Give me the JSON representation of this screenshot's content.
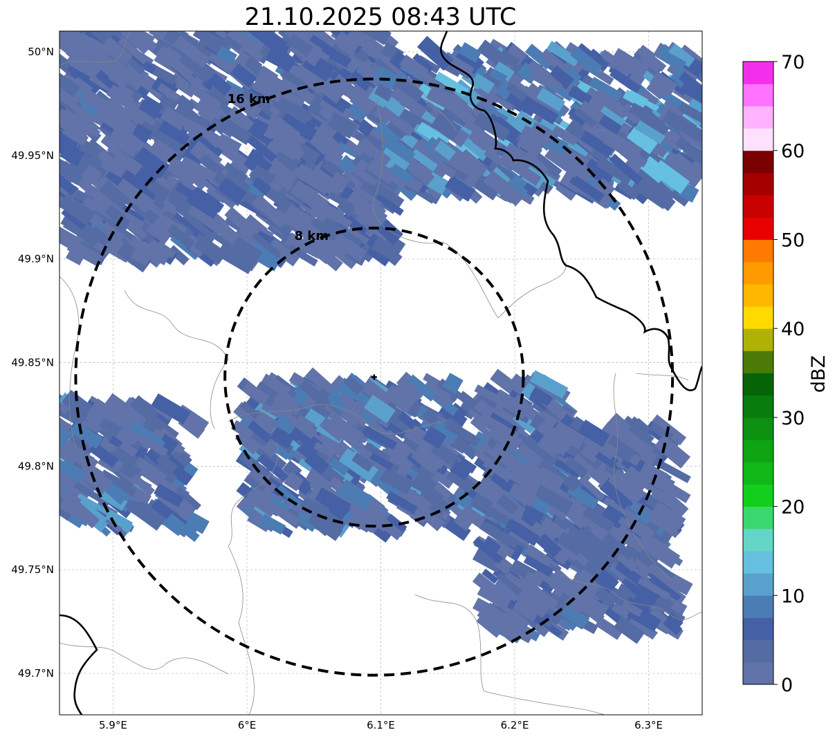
{
  "title": "21.10.2025 08:43 UTC",
  "colorbar": {
    "label": "dBZ",
    "ticks": [
      "0",
      "10",
      "20",
      "30",
      "40",
      "50",
      "60",
      "70"
    ],
    "min": 0,
    "max": 70,
    "colors": [
      "#6173a8",
      "#556ba3",
      "#4660a5",
      "#4c7cb4",
      "#5aa0cc",
      "#66c0e0",
      "#63d6c8",
      "#3ad86e",
      "#12cf1c",
      "#10b818",
      "#0ea413",
      "#0c9010",
      "#087c0c",
      "#056506",
      "#4b7a07",
      "#afb205",
      "#ffd900",
      "#ffb700",
      "#ff9a00",
      "#ff7a00",
      "#e80000",
      "#c80000",
      "#a40000",
      "#7a0000",
      "#ffe1ff",
      "#ffb3ff",
      "#ff73ff",
      "#f230ec"
    ]
  },
  "map": {
    "lon_range": [
      5.86,
      6.34
    ],
    "lat_range": [
      49.68,
      50.01
    ],
    "lon_ticks": [
      {
        "value": 5.9,
        "label": "5.9°E"
      },
      {
        "value": 6.0,
        "label": "6°E"
      },
      {
        "value": 6.1,
        "label": "6.1°E"
      },
      {
        "value": 6.2,
        "label": "6.2°E"
      },
      {
        "value": 6.3,
        "label": "6.3°E"
      }
    ],
    "lat_ticks": [
      {
        "value": 49.7,
        "label": "49.7°N"
      },
      {
        "value": 49.75,
        "label": "49.75°N"
      },
      {
        "value": 49.8,
        "label": "49.8°N"
      },
      {
        "value": 49.85,
        "label": "49.85°N"
      },
      {
        "value": 49.9,
        "label": "49.9°N"
      },
      {
        "value": 49.95,
        "label": "49.95°N"
      },
      {
        "value": 50.0,
        "label": "50°N"
      }
    ],
    "center": {
      "lon": 6.095,
      "lat": 49.843
    },
    "rings": [
      {
        "radius_km": 8,
        "label": "8 km"
      },
      {
        "radius_km": 16,
        "label": "16 km"
      }
    ],
    "echo_regions": [
      {
        "name": "north-west band",
        "lon": [
          5.86,
          6.11
        ],
        "lat": [
          49.9,
          50.01
        ],
        "dbz": [
          1,
          8
        ]
      },
      {
        "name": "north-east band",
        "lon": [
          6.1,
          6.34
        ],
        "lat": [
          49.93,
          50.0
        ],
        "dbz": [
          1,
          14
        ]
      },
      {
        "name": "south-central band",
        "lon": [
          6.0,
          6.24
        ],
        "lat": [
          49.77,
          49.84
        ],
        "dbz": [
          1,
          12
        ]
      },
      {
        "name": "south-east cells",
        "lon": [
          6.18,
          6.32
        ],
        "lat": [
          49.72,
          49.82
        ],
        "dbz": [
          1,
          8
        ]
      },
      {
        "name": "south-west cells",
        "lon": [
          5.86,
          5.96
        ],
        "lat": [
          49.77,
          49.83
        ],
        "dbz": [
          1,
          12
        ]
      }
    ]
  }
}
